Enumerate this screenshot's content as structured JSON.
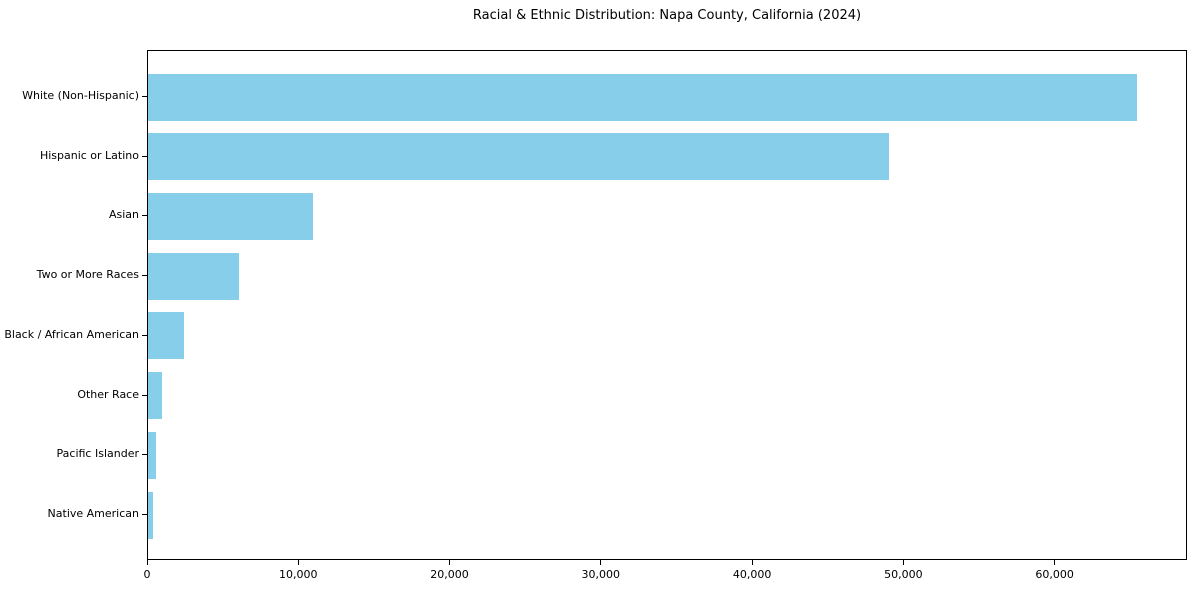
{
  "chart_data": {
    "type": "bar",
    "orientation": "horizontal",
    "title": "Racial & Ethnic Distribution: Napa County, California (2024)",
    "categories": [
      "White (Non-Hispanic)",
      "Hispanic or Latino",
      "Asian",
      "Two or More Races",
      "Black / African American",
      "Other Race",
      "Pacific Islander",
      "Native American"
    ],
    "values": [
      65400,
      49000,
      10900,
      6000,
      2400,
      900,
      500,
      300
    ],
    "xlabel": "",
    "ylabel": "",
    "xlim": [
      0,
      68750
    ],
    "x_ticks": [
      0,
      10000,
      20000,
      30000,
      40000,
      50000,
      60000
    ],
    "x_tick_labels": [
      "0",
      "10,000",
      "20,000",
      "30,000",
      "40,000",
      "50,000",
      "60,000"
    ],
    "bar_color": "#87CEEB",
    "grid": false,
    "legend": null
  }
}
